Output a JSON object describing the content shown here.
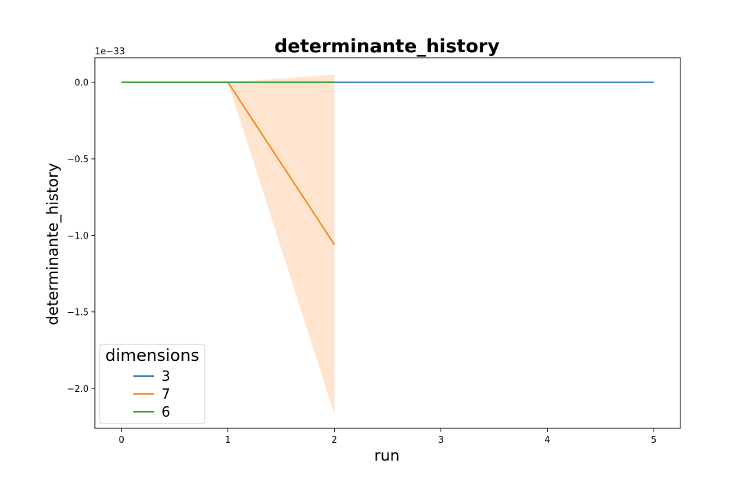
{
  "chart_data": {
    "type": "line",
    "title": "determinante_history",
    "xlabel": "run",
    "ylabel": "determinante_history",
    "y_offset_label": "1e−33",
    "y_scale_factor": 1e-33,
    "xlim": [
      -0.25,
      5.25
    ],
    "ylim": [
      -2.26,
      0.16
    ],
    "xticks": [
      0,
      1,
      2,
      3,
      4,
      5
    ],
    "xtick_labels": [
      "0",
      "1",
      "2",
      "3",
      "4",
      "5"
    ],
    "yticks": [
      0.0,
      -0.5,
      -1.0,
      -1.5,
      -2.0
    ],
    "ytick_labels": [
      "0.0",
      "−0.5",
      "−1.0",
      "−1.5",
      "−2.0"
    ],
    "grid": false,
    "legend": {
      "title": "dimensions",
      "placement": "lower-left"
    },
    "series": [
      {
        "name": "3",
        "color": "#1f77b4",
        "x": [
          0,
          1,
          2,
          3,
          4,
          5
        ],
        "y": [
          0.0,
          0.0,
          0.0,
          0.0,
          0.0,
          0.0
        ]
      },
      {
        "name": "7",
        "color": "#ff7f0e",
        "x": [
          0,
          1,
          2
        ],
        "y": [
          0.0,
          0.0,
          -1.06
        ],
        "band_lower": [
          0.0,
          0.0,
          -2.17
        ],
        "band_upper": [
          0.0,
          0.0,
          0.05
        ]
      },
      {
        "name": "6",
        "color": "#2ca02c",
        "x": [
          0,
          1,
          2
        ],
        "y": [
          0.0,
          0.0,
          0.0
        ]
      }
    ]
  }
}
